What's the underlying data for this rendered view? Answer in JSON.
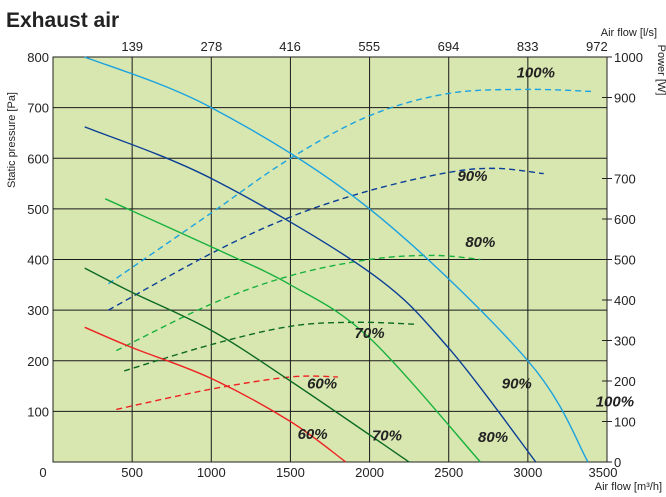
{
  "chart_data": {
    "type": "line",
    "title": "Exhaust air",
    "subtitle": "",
    "xlabel": "Air flow [m³/h]",
    "x2label": "Air flow [l/s]",
    "ylabel": "Static pressure [Pa]",
    "y2label": "Power [W]",
    "xlim": [
      0,
      3500
    ],
    "ylim": [
      0,
      800
    ],
    "y2lim": [
      0,
      1000
    ],
    "x_ticks": [
      "0",
      "500",
      "1000",
      "1500",
      "2000",
      "2500",
      "3000",
      "3500"
    ],
    "x2_ticks": [
      "139",
      "278",
      "416",
      "555",
      "694",
      "833",
      "972"
    ],
    "y_ticks": [
      "100",
      "200",
      "300",
      "400",
      "500",
      "600",
      "700",
      "800"
    ],
    "y2_ticks": [
      "0",
      "100",
      "200",
      "300",
      "400",
      "500",
      "600",
      "700",
      "900",
      "1000"
    ],
    "plot_background": "#d8e6b0",
    "grid": true,
    "pressure_curves": [
      {
        "label": "100%",
        "color": "#1aa3e0",
        "points": [
          [
            200,
            800
          ],
          [
            1000,
            700
          ],
          [
            2000,
            500
          ],
          [
            3000,
            200
          ],
          [
            3380,
            0
          ]
        ]
      },
      {
        "label": "90%",
        "color": "#0a3f96",
        "points": [
          [
            200,
            662
          ],
          [
            1000,
            560
          ],
          [
            2000,
            375
          ],
          [
            2500,
            225
          ],
          [
            3050,
            0
          ]
        ]
      },
      {
        "label": "80%",
        "color": "#18b23e",
        "points": [
          [
            330,
            520
          ],
          [
            1000,
            425
          ],
          [
            1500,
            350
          ],
          [
            2000,
            245
          ],
          [
            2700,
            0
          ]
        ]
      },
      {
        "label": "70%",
        "color": "#0b6a22",
        "points": [
          [
            200,
            383
          ],
          [
            500,
            335
          ],
          [
            1000,
            260
          ],
          [
            1500,
            160
          ],
          [
            2250,
            0
          ]
        ]
      },
      {
        "label": "60%",
        "color": "#ee2222",
        "points": [
          [
            200,
            266
          ],
          [
            500,
            226
          ],
          [
            1000,
            165
          ],
          [
            1500,
            80
          ],
          [
            1850,
            0
          ]
        ]
      }
    ],
    "power_curves": [
      {
        "label": "100%",
        "color": "#1aa3e0",
        "points": [
          [
            350,
            440
          ],
          [
            1000,
            615
          ],
          [
            1500,
            750
          ],
          [
            2000,
            855
          ],
          [
            2500,
            910
          ],
          [
            3000,
            920
          ],
          [
            3400,
            915
          ]
        ]
      },
      {
        "label": "90%",
        "color": "#0a3f96",
        "points": [
          [
            350,
            375
          ],
          [
            1000,
            515
          ],
          [
            1500,
            605
          ],
          [
            2000,
            670
          ],
          [
            2500,
            715
          ],
          [
            2800,
            725
          ],
          [
            3100,
            712
          ]
        ]
      },
      {
        "label": "80%",
        "color": "#18b23e",
        "points": [
          [
            400,
            275
          ],
          [
            1000,
            390
          ],
          [
            1500,
            460
          ],
          [
            2000,
            500
          ],
          [
            2400,
            510
          ],
          [
            2700,
            500
          ]
        ]
      },
      {
        "label": "70%",
        "color": "#0b6a22",
        "points": [
          [
            450,
            225
          ],
          [
            1000,
            290
          ],
          [
            1500,
            335
          ],
          [
            1900,
            345
          ],
          [
            2300,
            340
          ]
        ]
      },
      {
        "label": "60%",
        "color": "#ee2222",
        "points": [
          [
            400,
            130
          ],
          [
            1000,
            180
          ],
          [
            1500,
            210
          ],
          [
            1800,
            210
          ]
        ]
      }
    ],
    "curve_labels": [
      {
        "text": "100%",
        "x": 3050,
        "y": 760
      },
      {
        "text": "90%",
        "x": 2650,
        "y": 555
      },
      {
        "text": "80%",
        "x": 2700,
        "y": 425
      },
      {
        "text": "70%",
        "x": 2000,
        "y": 245
      },
      {
        "text": "60%",
        "x": 1700,
        "y": 145
      },
      {
        "text": "90%",
        "x": 2930,
        "y": 145
      },
      {
        "text": "100%",
        "x": 3550,
        "y": 110
      },
      {
        "text": "60%",
        "x": 1640,
        "y": 45
      },
      {
        "text": "70%",
        "x": 2110,
        "y": 42
      },
      {
        "text": "80%",
        "x": 2780,
        "y": 40
      }
    ]
  }
}
